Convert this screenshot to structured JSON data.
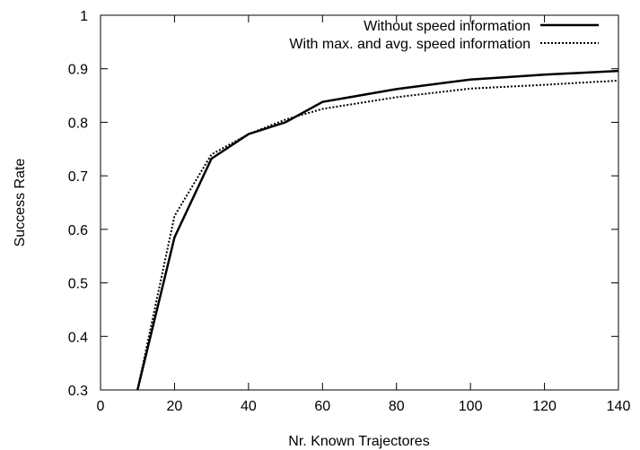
{
  "chart_data": {
    "type": "line",
    "title": "",
    "xlabel": "Nr. Known Trajectores",
    "ylabel": "Success Rate",
    "xlim": [
      0,
      140
    ],
    "ylim": [
      0.3,
      1.0
    ],
    "xticks": [
      "0",
      "20",
      "40",
      "60",
      "80",
      "100",
      "120",
      "140"
    ],
    "yticks": [
      "0.3",
      "0.4",
      "0.5",
      "0.6",
      "0.7",
      "0.8",
      "0.9",
      "1"
    ],
    "grid": false,
    "legend_position": "top-right",
    "series": [
      {
        "name": "Without speed information",
        "style": "solid",
        "color": "#000000",
        "x": [
          10,
          20,
          30,
          40,
          50,
          60,
          80,
          100,
          120,
          140
        ],
        "y": [
          0.3,
          0.585,
          0.732,
          0.778,
          0.8,
          0.838,
          0.862,
          0.88,
          0.889,
          0.896
        ]
      },
      {
        "name": "With max. and avg. speed information",
        "style": "dotted",
        "color": "#000000",
        "x": [
          10,
          20,
          30,
          40,
          50,
          60,
          80,
          100,
          120,
          140
        ],
        "y": [
          0.3,
          0.625,
          0.74,
          0.778,
          0.805,
          0.825,
          0.847,
          0.863,
          0.87,
          0.878
        ]
      }
    ]
  }
}
